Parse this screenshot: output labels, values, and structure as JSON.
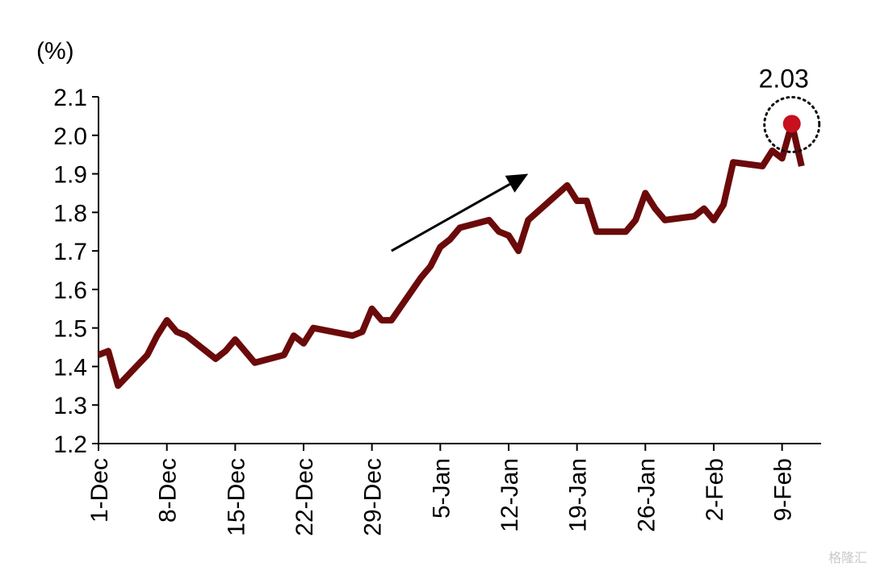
{
  "chart_data": {
    "type": "line",
    "unit_label": "(%)",
    "title": "",
    "xlabel": "",
    "ylabel": "",
    "ylim": [
      1.2,
      2.1
    ],
    "yticks": [
      1.2,
      1.3,
      1.4,
      1.5,
      1.6,
      1.7,
      1.8,
      1.9,
      2.0,
      2.1
    ],
    "ytick_labels": [
      "1.2",
      "1.3",
      "1.4",
      "1.5",
      "1.6",
      "1.7",
      "1.8",
      "1.9",
      "2.0",
      "2.1"
    ],
    "xlim": [
      "2021-12-01",
      "2022-02-13"
    ],
    "xtick_labels": [
      "1-Dec",
      "8-Dec",
      "15-Dec",
      "22-Dec",
      "29-Dec",
      "5-Jan",
      "12-Jan",
      "19-Jan",
      "26-Jan",
      "2-Feb",
      "9-Feb"
    ],
    "xtick_dates": [
      "2021-12-01",
      "2021-12-08",
      "2021-12-15",
      "2021-12-22",
      "2021-12-29",
      "2022-01-05",
      "2022-01-12",
      "2022-01-19",
      "2022-01-26",
      "2022-02-02",
      "2022-02-09"
    ],
    "grid": false,
    "line_color": "#6b0a0a",
    "series": [
      {
        "name": "",
        "points": [
          [
            "2021-12-01",
            1.43
          ],
          [
            "2021-12-02",
            1.44
          ],
          [
            "2021-12-03",
            1.35
          ],
          [
            "2021-12-06",
            1.43
          ],
          [
            "2021-12-07",
            1.48
          ],
          [
            "2021-12-08",
            1.52
          ],
          [
            "2021-12-09",
            1.49
          ],
          [
            "2021-12-10",
            1.48
          ],
          [
            "2021-12-13",
            1.42
          ],
          [
            "2021-12-14",
            1.44
          ],
          [
            "2021-12-15",
            1.47
          ],
          [
            "2021-12-16",
            1.44
          ],
          [
            "2021-12-17",
            1.41
          ],
          [
            "2021-12-20",
            1.43
          ],
          [
            "2021-12-21",
            1.48
          ],
          [
            "2021-12-22",
            1.46
          ],
          [
            "2021-12-23",
            1.5
          ],
          [
            "2021-12-27",
            1.48
          ],
          [
            "2021-12-28",
            1.49
          ],
          [
            "2021-12-29",
            1.55
          ],
          [
            "2021-12-30",
            1.52
          ],
          [
            "2021-12-31",
            1.52
          ],
          [
            "2022-01-03",
            1.63
          ],
          [
            "2022-01-04",
            1.66
          ],
          [
            "2022-01-05",
            1.71
          ],
          [
            "2022-01-06",
            1.73
          ],
          [
            "2022-01-07",
            1.76
          ],
          [
            "2022-01-10",
            1.78
          ],
          [
            "2022-01-11",
            1.75
          ],
          [
            "2022-01-12",
            1.74
          ],
          [
            "2022-01-13",
            1.7
          ],
          [
            "2022-01-14",
            1.78
          ],
          [
            "2022-01-18",
            1.87
          ],
          [
            "2022-01-19",
            1.83
          ],
          [
            "2022-01-20",
            1.83
          ],
          [
            "2022-01-21",
            1.75
          ],
          [
            "2022-01-24",
            1.75
          ],
          [
            "2022-01-25",
            1.78
          ],
          [
            "2022-01-26",
            1.85
          ],
          [
            "2022-01-27",
            1.81
          ],
          [
            "2022-01-28",
            1.78
          ],
          [
            "2022-01-31",
            1.79
          ],
          [
            "2022-02-01",
            1.81
          ],
          [
            "2022-02-02",
            1.78
          ],
          [
            "2022-02-03",
            1.82
          ],
          [
            "2022-02-04",
            1.93
          ],
          [
            "2022-02-07",
            1.92
          ],
          [
            "2022-02-08",
            1.96
          ],
          [
            "2022-02-09",
            1.94
          ],
          [
            "2022-02-10",
            2.03
          ],
          [
            "2022-02-11",
            1.92
          ]
        ]
      }
    ],
    "annotations": [
      {
        "type": "highlight-point",
        "date": "2022-02-10",
        "value": 2.03,
        "label": "2.03",
        "color": "#c8101e"
      },
      {
        "type": "trend-arrow",
        "from": [
          "2021-12-31",
          1.7
        ],
        "to": [
          "2022-01-14",
          1.9
        ]
      }
    ]
  },
  "watermark": "格隆汇"
}
